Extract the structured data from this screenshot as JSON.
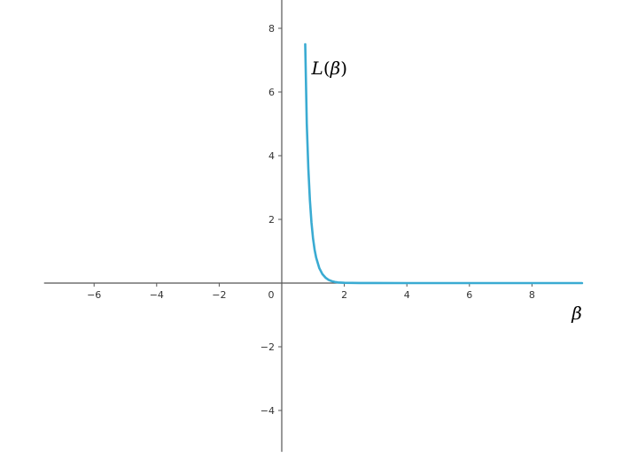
{
  "chart_data": {
    "type": "line",
    "xlim": [
      -7.6,
      9.6
    ],
    "ylim": [
      -5.3,
      8.9
    ],
    "x_ticks": [
      -6,
      -4,
      -2,
      0,
      2,
      4,
      6,
      8
    ],
    "y_ticks": [
      -4,
      -2,
      2,
      4,
      6,
      8
    ],
    "grid": false,
    "xlabel": "β",
    "series": [
      {
        "name": "L(β)",
        "color": "#3aabd2",
        "x": [
          0.75,
          0.8,
          0.85,
          0.9,
          0.95,
          1.0,
          1.05,
          1.1,
          1.2,
          1.3,
          1.4,
          1.5,
          1.6,
          1.7,
          1.8,
          2.0,
          2.5,
          3.0,
          4.0,
          5.0,
          6.0,
          7.0,
          8.0,
          9.0,
          9.6
        ],
        "y": [
          7.5,
          5.0,
          3.6,
          2.6,
          1.9,
          1.4,
          1.05,
          0.8,
          0.47,
          0.28,
          0.17,
          0.1,
          0.06,
          0.035,
          0.02,
          0.008,
          0.002,
          0.0005,
          0.0,
          0.0,
          0.0,
          0.0,
          0.0,
          0.0,
          0.0
        ]
      }
    ],
    "annotations": [
      {
        "text": "L(β)",
        "x": 0.95,
        "y": 6.75
      }
    ]
  }
}
